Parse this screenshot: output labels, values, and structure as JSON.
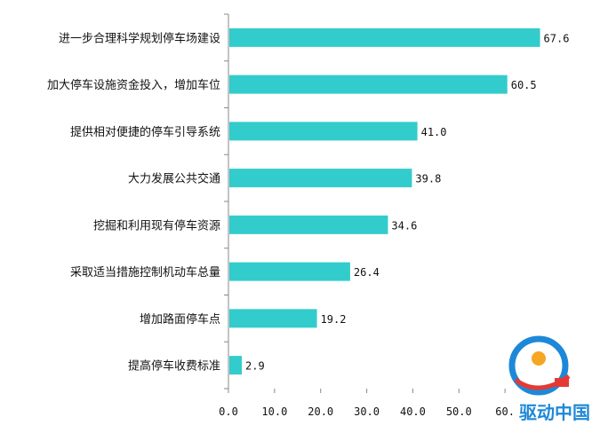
{
  "chart_data": {
    "type": "bar",
    "orientation": "horizontal",
    "title": "",
    "xlabel": "",
    "ylabel": "",
    "categories": [
      "进一步合理科学规划停车场建设",
      "加大停车设施资金投入，增加车位",
      "提供相对便捷的停车引导系统",
      "大力发展公共交通",
      "挖掘和利用现有停车资源",
      "采取适当措施控制机动车总量",
      "增加路面停车点",
      "提高停车收费标准"
    ],
    "values": [
      67.6,
      60.5,
      41.0,
      39.8,
      34.6,
      26.4,
      19.2,
      2.9
    ],
    "value_labels": [
      "67.6",
      "60.5",
      "41.0",
      "39.8",
      "34.6",
      "26.4",
      "19.2",
      "2.9"
    ],
    "xlim": [
      0,
      70
    ],
    "x_ticks": [
      0,
      10,
      20,
      30,
      40,
      50,
      60
    ],
    "x_tick_labels": [
      "0.0",
      "10.0",
      "20.0",
      "30.0",
      "40.0",
      "50.0",
      "60."
    ],
    "grid": false,
    "legend": "none",
    "bar_color": "#33cccc"
  },
  "watermark": {
    "text": "驱动中国",
    "colors": {
      "primary": "#1e88d8",
      "accent": "#e53935",
      "orange": "#f5a623"
    }
  }
}
